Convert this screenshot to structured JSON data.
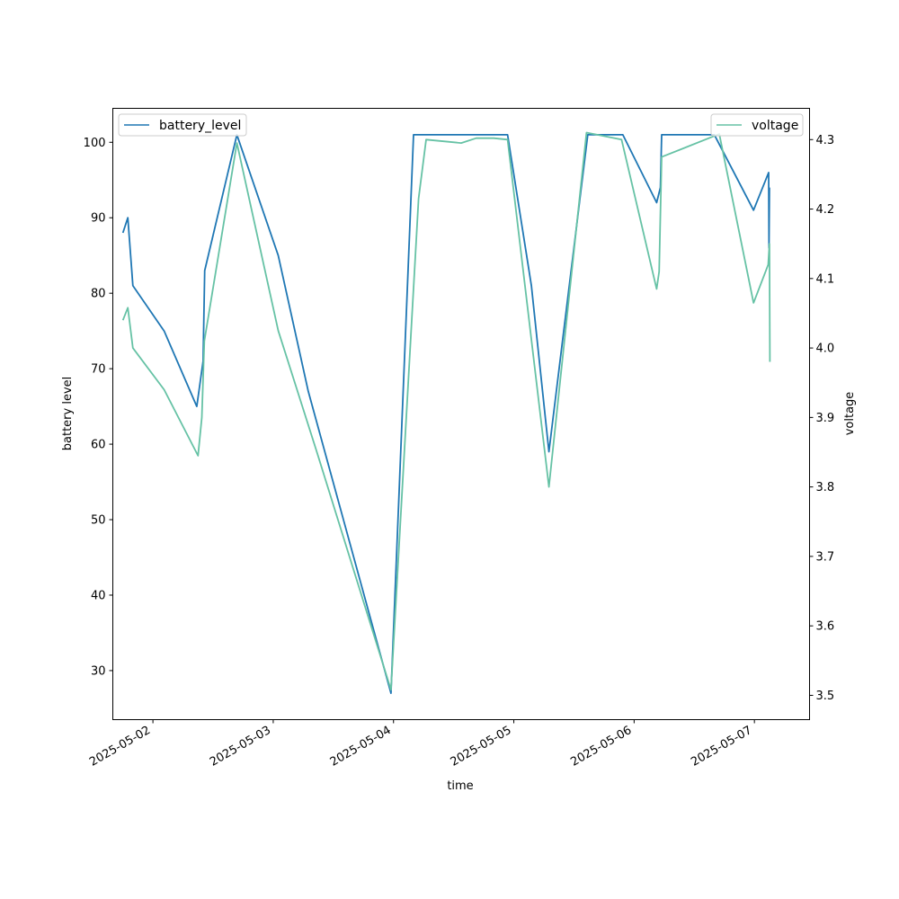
{
  "chart_data": {
    "type": "line",
    "xlabel": "time",
    "ylabel": "battery level",
    "y2label": "voltage",
    "xticks": [
      "2025-05-02",
      "2025-05-03",
      "2025-05-04",
      "2025-05-05",
      "2025-05-06",
      "2025-05-07"
    ],
    "xlim": [
      "2025-05-01 16:00",
      "2025-05-07 11:00"
    ],
    "ylim": [
      23.5,
      104.5
    ],
    "y2lim": [
      3.465,
      4.345
    ],
    "yticks": [
      30,
      40,
      50,
      60,
      70,
      80,
      90,
      100
    ],
    "y2ticks": [
      "3.5",
      "3.6",
      "3.7",
      "3.8",
      "3.9",
      "4.0",
      "4.1",
      "4.2",
      "4.3"
    ],
    "grid": false,
    "series": [
      {
        "name": "battery_level",
        "axis": "left",
        "color": "#1f77b4",
        "legend_position": "upper-left",
        "points": [
          [
            "2025-05-01 18:00",
            88
          ],
          [
            "2025-05-01 19:00",
            90
          ],
          [
            "2025-05-01 20:00",
            81
          ],
          [
            "2025-05-02 02:15",
            75
          ],
          [
            "2025-05-02 08:45",
            65
          ],
          [
            "2025-05-02 10:00",
            71
          ],
          [
            "2025-05-02 10:20",
            83
          ],
          [
            "2025-05-02 16:45",
            101
          ],
          [
            "2025-05-03 01:00",
            85
          ],
          [
            "2025-05-03 07:00",
            67
          ],
          [
            "2025-05-03 23:30",
            27
          ],
          [
            "2025-05-04 04:00",
            101
          ],
          [
            "2025-05-04 22:45",
            101
          ],
          [
            "2025-05-05 03:30",
            81
          ],
          [
            "2025-05-05 07:00",
            59
          ],
          [
            "2025-05-05 14:45",
            101
          ],
          [
            "2025-05-05 21:45",
            101
          ],
          [
            "2025-05-06 04:30",
            92
          ],
          [
            "2025-05-06 05:15",
            94
          ],
          [
            "2025-05-06 05:30",
            101
          ],
          [
            "2025-05-06 16:00",
            101
          ],
          [
            "2025-05-06 23:50",
            91
          ],
          [
            "2025-05-07 02:50",
            96
          ],
          [
            "2025-05-07 02:55",
            86
          ],
          [
            "2025-05-07 03:00",
            94
          ]
        ]
      },
      {
        "name": "voltage",
        "axis": "right",
        "color": "#66c2a5",
        "legend_position": "upper-right",
        "points": [
          [
            "2025-05-01 18:00",
            4.04
          ],
          [
            "2025-05-01 19:00",
            4.058
          ],
          [
            "2025-05-01 20:00",
            4.0
          ],
          [
            "2025-05-02 02:15",
            3.94
          ],
          [
            "2025-05-02 09:00",
            3.845
          ],
          [
            "2025-05-02 09:45",
            3.9
          ],
          [
            "2025-05-02 10:15",
            4.01
          ],
          [
            "2025-05-02 16:45",
            4.295
          ],
          [
            "2025-05-03 01:00",
            4.025
          ],
          [
            "2025-05-03 08:30",
            3.855
          ],
          [
            "2025-05-03 23:30",
            3.508
          ],
          [
            "2025-05-04 05:00",
            4.215
          ],
          [
            "2025-05-04 06:30",
            4.3
          ],
          [
            "2025-05-04 13:30",
            4.295
          ],
          [
            "2025-05-04 16:30",
            4.302
          ],
          [
            "2025-05-04 20:00",
            4.302
          ],
          [
            "2025-05-04 22:45",
            4.3
          ],
          [
            "2025-05-05 07:00",
            3.8
          ],
          [
            "2025-05-05 14:30",
            4.31
          ],
          [
            "2025-05-05 21:30",
            4.3
          ],
          [
            "2025-05-06 04:30",
            4.085
          ],
          [
            "2025-05-06 05:00",
            4.11
          ],
          [
            "2025-05-06 05:30",
            4.275
          ],
          [
            "2025-05-06 17:00",
            4.308
          ],
          [
            "2025-05-06 23:50",
            4.065
          ],
          [
            "2025-05-07 02:45",
            4.12
          ],
          [
            "2025-05-07 03:00",
            4.15
          ],
          [
            "2025-05-07 03:05",
            3.98
          ]
        ]
      }
    ]
  }
}
